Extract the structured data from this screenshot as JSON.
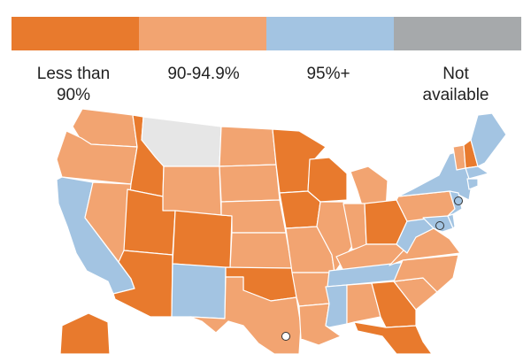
{
  "legend": {
    "items": [
      {
        "label": "Less than 90%",
        "color": "#E87A2D"
      },
      {
        "label": "90-94.9%",
        "color": "#F2A471"
      },
      {
        "label": "95%+",
        "color": "#A3C4E2"
      },
      {
        "label": "Not available",
        "color": "#A6A9AB"
      }
    ]
  },
  "map": {
    "outline_color": "#ffffff",
    "no_data_fill": "#E6E6E6",
    "states": [
      {
        "name": "Washington",
        "category": "90-94.9%"
      },
      {
        "name": "Oregon",
        "category": "90-94.9%"
      },
      {
        "name": "California",
        "category": "95%+"
      },
      {
        "name": "Idaho",
        "category": "Less than 90%"
      },
      {
        "name": "Nevada",
        "category": "90-94.9%"
      },
      {
        "name": "Montana",
        "category": "Not available"
      },
      {
        "name": "Wyoming",
        "category": "90-94.9%"
      },
      {
        "name": "Utah",
        "category": "Less than 90%"
      },
      {
        "name": "Arizona",
        "category": "Less than 90%"
      },
      {
        "name": "Colorado",
        "category": "Less than 90%"
      },
      {
        "name": "New Mexico",
        "category": "95%+"
      },
      {
        "name": "North Dakota",
        "category": "90-94.9%"
      },
      {
        "name": "South Dakota",
        "category": "90-94.9%"
      },
      {
        "name": "Nebraska",
        "category": "90-94.9%"
      },
      {
        "name": "Kansas",
        "category": "90-94.9%"
      },
      {
        "name": "Oklahoma",
        "category": "Less than 90%"
      },
      {
        "name": "Texas",
        "category": "90-94.9%"
      },
      {
        "name": "Minnesota",
        "category": "Less than 90%"
      },
      {
        "name": "Iowa",
        "category": "Less than 90%"
      },
      {
        "name": "Missouri",
        "category": "90-94.9%"
      },
      {
        "name": "Arkansas",
        "category": "90-94.9%"
      },
      {
        "name": "Louisiana",
        "category": "90-94.9%"
      },
      {
        "name": "Wisconsin",
        "category": "Less than 90%"
      },
      {
        "name": "Illinois",
        "category": "90-94.9%"
      },
      {
        "name": "Michigan",
        "category": "90-94.9%"
      },
      {
        "name": "Indiana",
        "category": "90-94.9%"
      },
      {
        "name": "Ohio",
        "category": "Less than 90%"
      },
      {
        "name": "Kentucky",
        "category": "90-94.9%"
      },
      {
        "name": "Tennessee",
        "category": "95%+"
      },
      {
        "name": "Mississippi",
        "category": "95%+"
      },
      {
        "name": "Alabama",
        "category": "90-94.9%"
      },
      {
        "name": "Georgia",
        "category": "Less than 90%"
      },
      {
        "name": "Florida",
        "category": "Less than 90%"
      },
      {
        "name": "South Carolina",
        "category": "90-94.9%"
      },
      {
        "name": "North Carolina",
        "category": "90-94.9%"
      },
      {
        "name": "Virginia",
        "category": "90-94.9%"
      },
      {
        "name": "West Virginia",
        "category": "95%+"
      },
      {
        "name": "Pennsylvania",
        "category": "90-94.9%"
      },
      {
        "name": "New York",
        "category": "95%+"
      },
      {
        "name": "Vermont",
        "category": "90-94.9%"
      },
      {
        "name": "New Hampshire",
        "category": "Less than 90%"
      },
      {
        "name": "Maine",
        "category": "95%+"
      },
      {
        "name": "Massachusetts",
        "category": "95%+"
      },
      {
        "name": "Connecticut",
        "category": "95%+"
      },
      {
        "name": "New Jersey",
        "category": "95%+"
      },
      {
        "name": "Maryland",
        "category": "95%+"
      },
      {
        "name": "Delaware",
        "category": "95%+"
      },
      {
        "name": "Alaska",
        "category": "Less than 90%"
      }
    ]
  }
}
